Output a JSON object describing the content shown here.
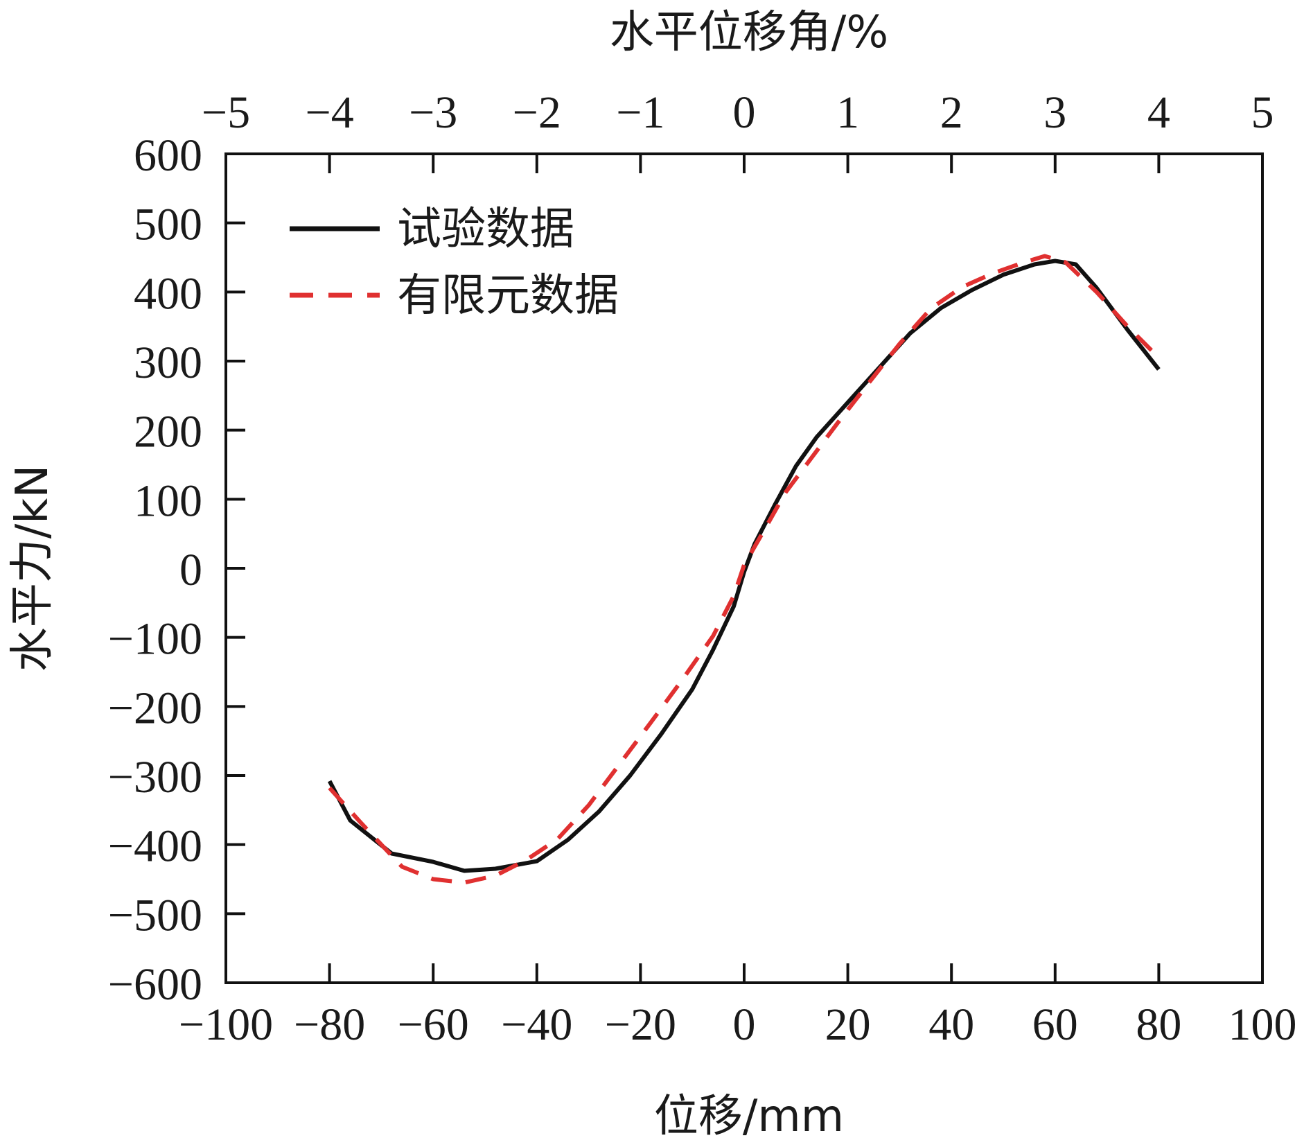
{
  "chart_data": {
    "type": "line",
    "xlabel": "位移/mm",
    "ylabel": "水平力/kN",
    "x2label": "水平位移角/%",
    "xlim": [
      -100,
      100
    ],
    "ylim": [
      -600,
      600
    ],
    "x2lim": [
      -5,
      5
    ],
    "xticks": [
      -100,
      -80,
      -60,
      -40,
      -20,
      0,
      20,
      40,
      60,
      80,
      100
    ],
    "yticks": [
      -600,
      -500,
      -400,
      -300,
      -200,
      -100,
      0,
      100,
      200,
      300,
      400,
      500,
      600
    ],
    "x2ticks": [
      -5,
      -4,
      -3,
      -2,
      -1,
      0,
      1,
      2,
      3,
      4,
      5
    ],
    "xtick_labels": [
      "−100",
      "−80",
      "−60",
      "−40",
      "−20",
      "0",
      "20",
      "40",
      "60",
      "80",
      "100"
    ],
    "ytick_labels": [
      "−600",
      "−500",
      "−400",
      "−300",
      "−200",
      "−100",
      "0",
      "100",
      "200",
      "300",
      "400",
      "500",
      "600"
    ],
    "x2tick_labels": [
      "−5",
      "−4",
      "−3",
      "−2",
      "−1",
      "0",
      "1",
      "2",
      "3",
      "4",
      "5"
    ],
    "grid": false,
    "legend_position": "top-left",
    "series": [
      {
        "name": "试验数据",
        "color": "#111111",
        "dash": "solid",
        "points": [
          [
            -80,
            -308
          ],
          [
            -76,
            -365
          ],
          [
            -68,
            -413
          ],
          [
            -60,
            -425
          ],
          [
            -54,
            -438
          ],
          [
            -48,
            -435
          ],
          [
            -40,
            -424
          ],
          [
            -34,
            -393
          ],
          [
            -28,
            -352
          ],
          [
            -22,
            -300
          ],
          [
            -16,
            -240
          ],
          [
            -10,
            -175
          ],
          [
            -6,
            -118
          ],
          [
            -2,
            -55
          ],
          [
            0,
            -5
          ],
          [
            2,
            35
          ],
          [
            6,
            93
          ],
          [
            10,
            148
          ],
          [
            14,
            190
          ],
          [
            20,
            240
          ],
          [
            26,
            290
          ],
          [
            32,
            340
          ],
          [
            38,
            377
          ],
          [
            44,
            403
          ],
          [
            50,
            425
          ],
          [
            56,
            440
          ],
          [
            60,
            445
          ],
          [
            64,
            440
          ],
          [
            68,
            406
          ],
          [
            74,
            345
          ],
          [
            80,
            288
          ]
        ]
      },
      {
        "name": "有限元数据",
        "color": "#e03030",
        "dash": "dashed",
        "points": [
          [
            -80,
            -318
          ],
          [
            -74,
            -368
          ],
          [
            -66,
            -432
          ],
          [
            -60,
            -450
          ],
          [
            -54,
            -455
          ],
          [
            -48,
            -445
          ],
          [
            -42,
            -422
          ],
          [
            -36,
            -392
          ],
          [
            -30,
            -343
          ],
          [
            -24,
            -283
          ],
          [
            -18,
            -223
          ],
          [
            -12,
            -162
          ],
          [
            -6,
            -98
          ],
          [
            -2,
            -40
          ],
          [
            0,
            5
          ],
          [
            4,
            57
          ],
          [
            8,
            110
          ],
          [
            12,
            150
          ],
          [
            18,
            210
          ],
          [
            24,
            268
          ],
          [
            30,
            325
          ],
          [
            36,
            376
          ],
          [
            42,
            407
          ],
          [
            48,
            427
          ],
          [
            54,
            443
          ],
          [
            58,
            452
          ],
          [
            62,
            443
          ],
          [
            68,
            400
          ],
          [
            74,
            350
          ],
          [
            80,
            305
          ]
        ]
      }
    ]
  }
}
